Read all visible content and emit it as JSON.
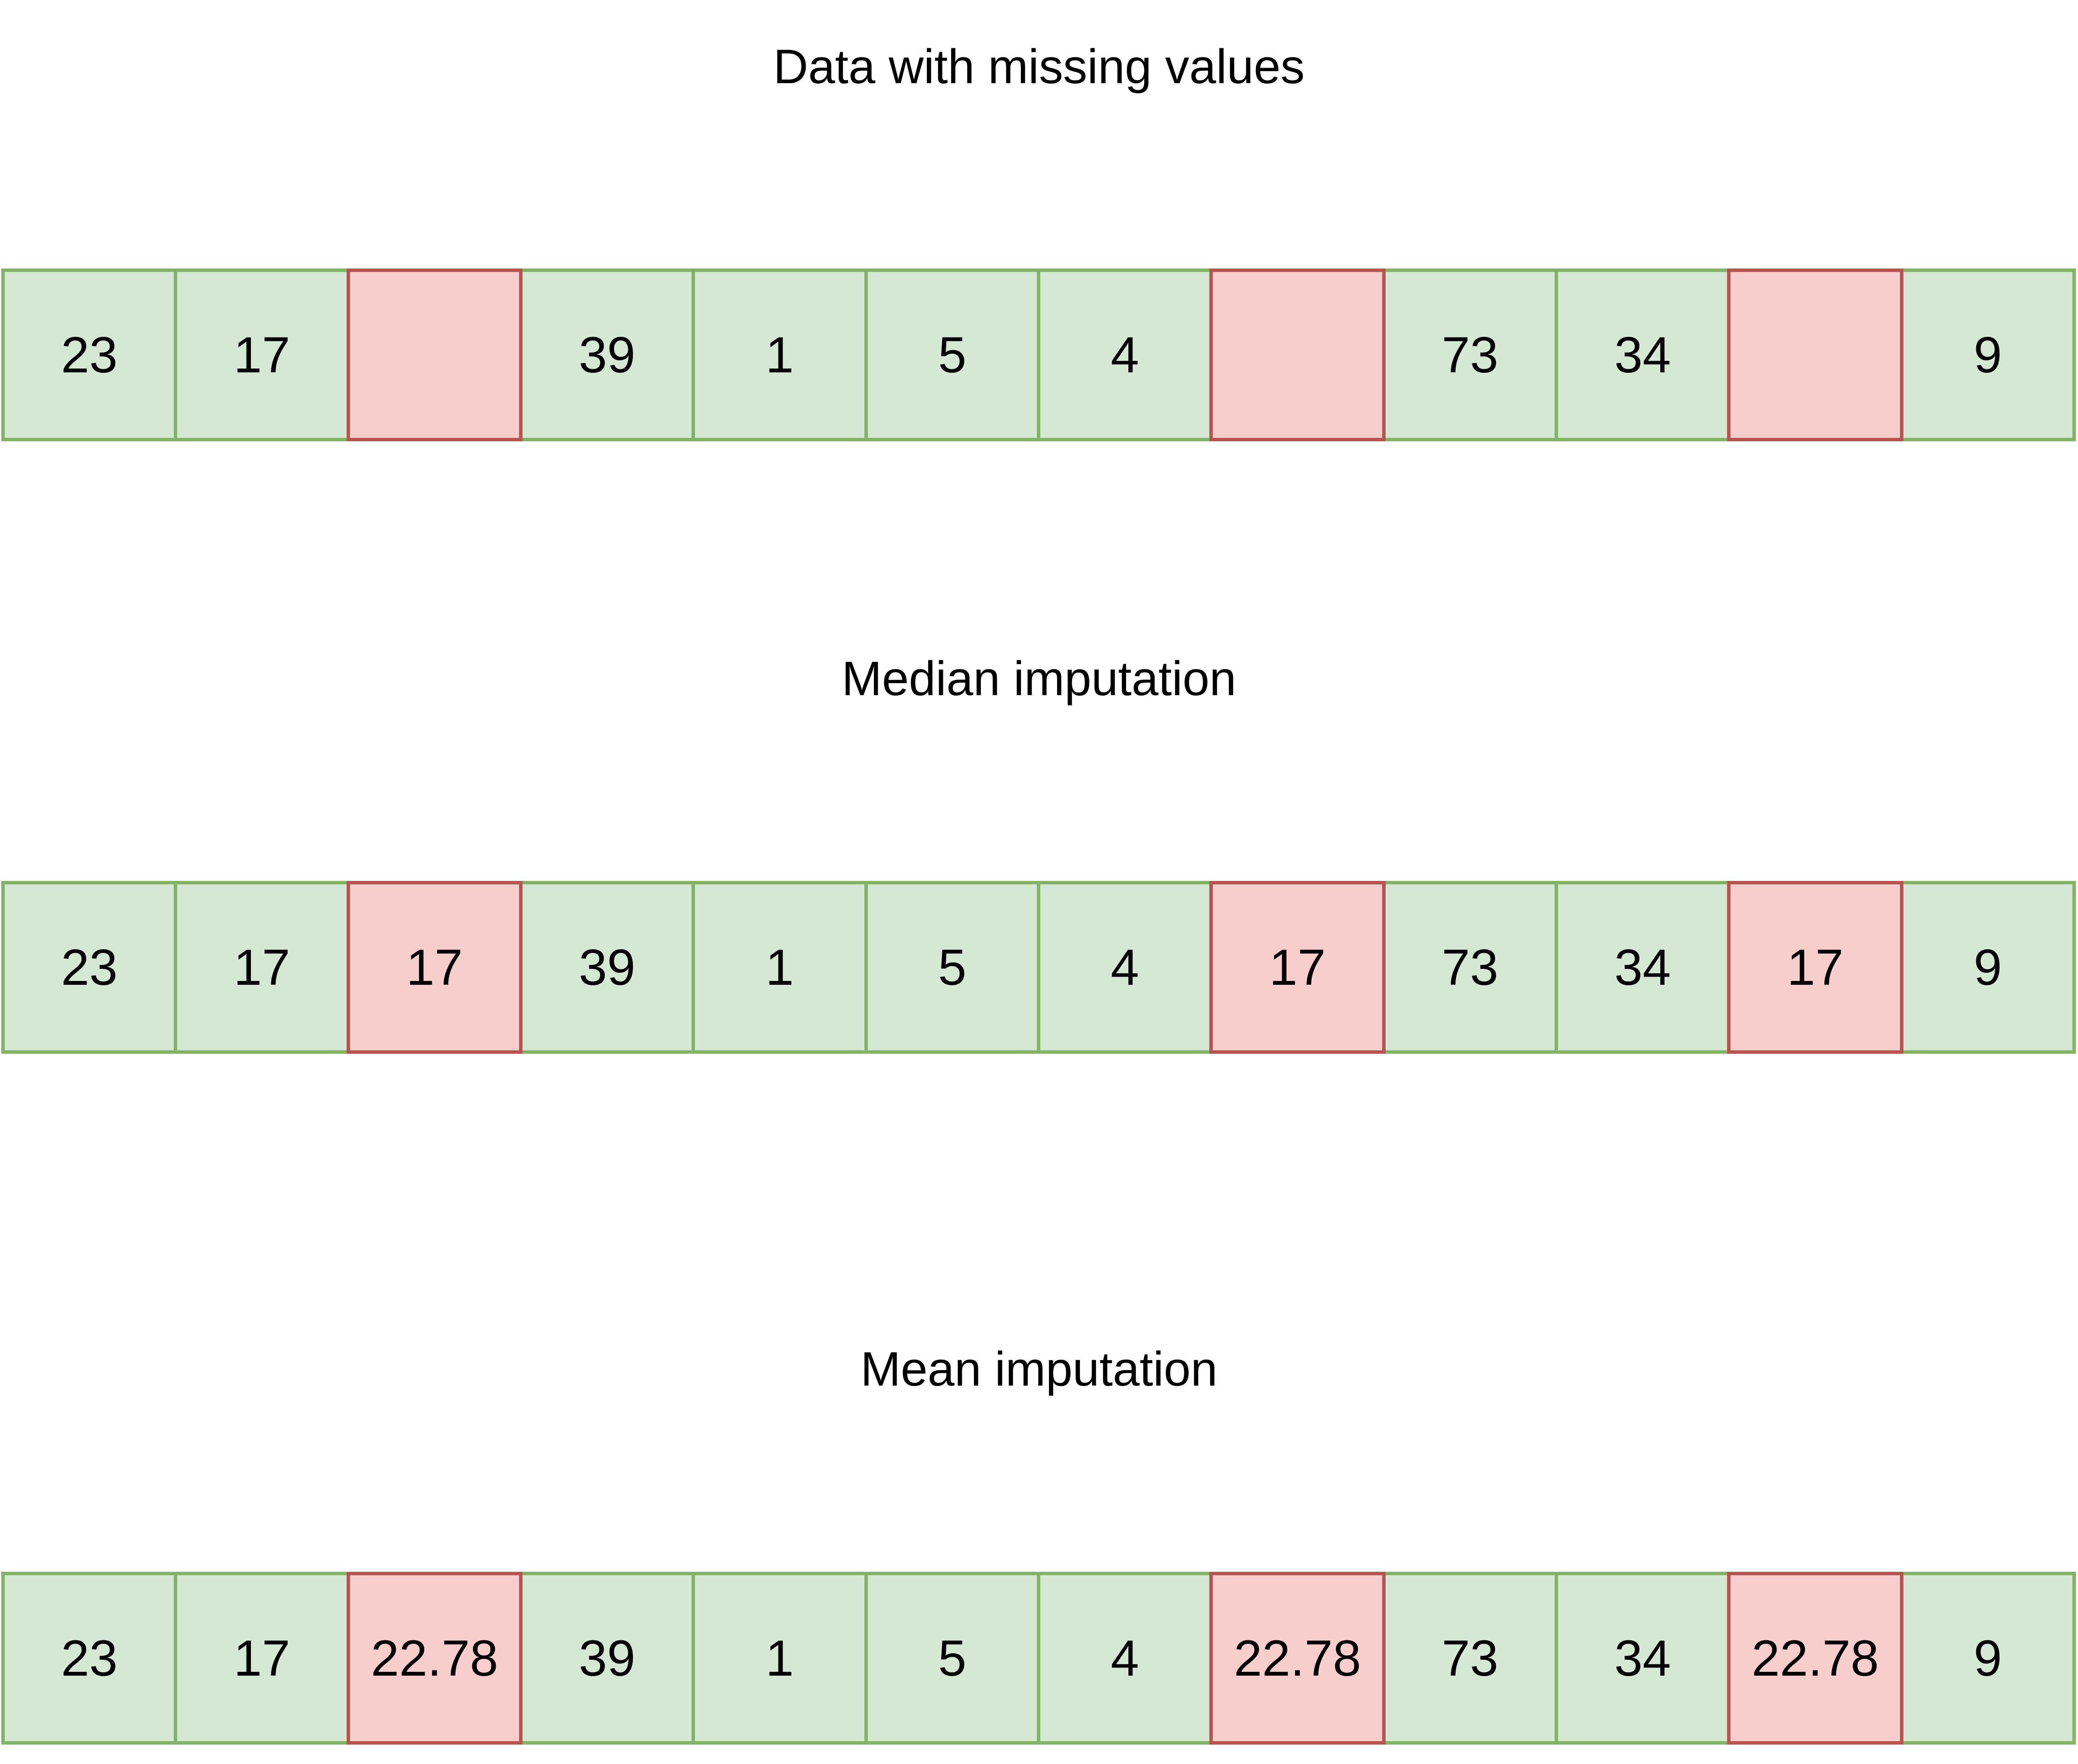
{
  "colors": {
    "present_fill": "#d5e8d4",
    "present_stroke": "#82b366",
    "missing_fill": "#f8cecc",
    "missing_stroke": "#b85450"
  },
  "sections": [
    {
      "title": "Data with missing values",
      "cells": [
        {
          "value": "23",
          "missing": false
        },
        {
          "value": "17",
          "missing": false
        },
        {
          "value": "",
          "missing": true
        },
        {
          "value": "39",
          "missing": false
        },
        {
          "value": "1",
          "missing": false
        },
        {
          "value": "5",
          "missing": false
        },
        {
          "value": "4",
          "missing": false
        },
        {
          "value": "",
          "missing": true
        },
        {
          "value": "73",
          "missing": false
        },
        {
          "value": "34",
          "missing": false
        },
        {
          "value": "",
          "missing": true
        },
        {
          "value": "9",
          "missing": false
        }
      ]
    },
    {
      "title": "Median imputation",
      "cells": [
        {
          "value": "23",
          "missing": false
        },
        {
          "value": "17",
          "missing": false
        },
        {
          "value": "17",
          "missing": true
        },
        {
          "value": "39",
          "missing": false
        },
        {
          "value": "1",
          "missing": false
        },
        {
          "value": "5",
          "missing": false
        },
        {
          "value": "4",
          "missing": false
        },
        {
          "value": "17",
          "missing": true
        },
        {
          "value": "73",
          "missing": false
        },
        {
          "value": "34",
          "missing": false
        },
        {
          "value": "17",
          "missing": true
        },
        {
          "value": "9",
          "missing": false
        }
      ]
    },
    {
      "title": "Mean imputation",
      "cells": [
        {
          "value": "23",
          "missing": false
        },
        {
          "value": "17",
          "missing": false
        },
        {
          "value": "22.78",
          "missing": true
        },
        {
          "value": "39",
          "missing": false
        },
        {
          "value": "1",
          "missing": false
        },
        {
          "value": "5",
          "missing": false
        },
        {
          "value": "4",
          "missing": false
        },
        {
          "value": "22.78",
          "missing": true
        },
        {
          "value": "73",
          "missing": false
        },
        {
          "value": "34",
          "missing": false
        },
        {
          "value": "22.78",
          "missing": true
        },
        {
          "value": "9",
          "missing": false
        }
      ]
    }
  ]
}
